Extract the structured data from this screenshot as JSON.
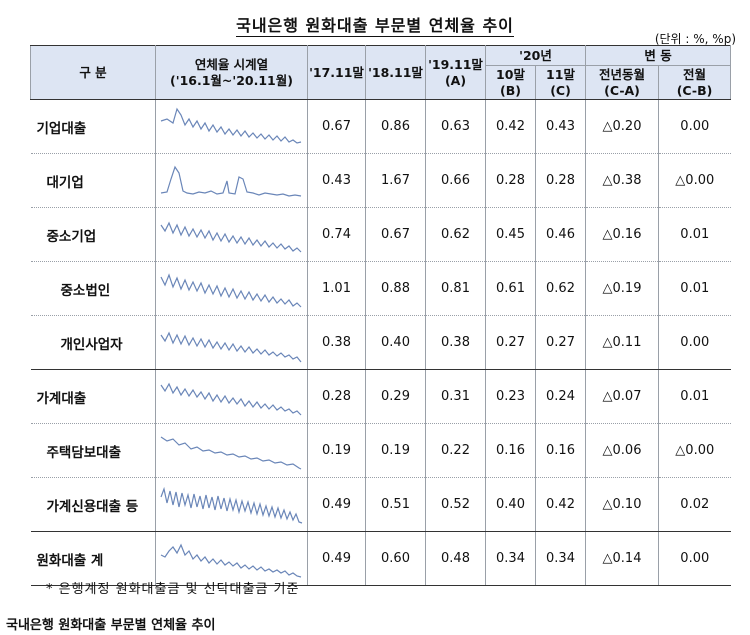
{
  "title": "국내은행 원화대출 부문별 연체율 추이",
  "unit": "(단위 : %, %p)",
  "header": {
    "category": "구 분",
    "series_line1": "연체율 시계열",
    "series_line2": "('16.1월~'20.11월)",
    "c17": "'17.11말",
    "c18": "'18.11말",
    "c19_line1": "'19.11말",
    "c19_line2": "(A)",
    "group20": "'20년",
    "c20oct": "10말(B)",
    "c20nov": "11말(C)",
    "change": "변 동",
    "yoy_line1": "전년동월",
    "yoy_line2": "(C-A)",
    "mom_line1": "전월",
    "mom_line2": "(C-B)"
  },
  "rows": [
    {
      "name": "기업대출",
      "level": 0,
      "v17": "0.67",
      "v18": "0.86",
      "v19": "0.63",
      "oct": "0.42",
      "nov": "0.43",
      "yoy": "△0.20",
      "mom": "0.00"
    },
    {
      "name": "대기업",
      "level": 1,
      "v17": "0.43",
      "v18": "1.67",
      "v19": "0.66",
      "oct": "0.28",
      "nov": "0.28",
      "yoy": "△0.38",
      "mom": "△0.00"
    },
    {
      "name": "중소기업",
      "level": 1,
      "v17": "0.74",
      "v18": "0.67",
      "v19": "0.62",
      "oct": "0.45",
      "nov": "0.46",
      "yoy": "△0.16",
      "mom": "0.01"
    },
    {
      "name": "중소법인",
      "level": 2,
      "v17": "1.01",
      "v18": "0.88",
      "v19": "0.81",
      "oct": "0.61",
      "nov": "0.62",
      "yoy": "△0.19",
      "mom": "0.01"
    },
    {
      "name": "개인사업자",
      "level": 2,
      "v17": "0.38",
      "v18": "0.40",
      "v19": "0.38",
      "oct": "0.27",
      "nov": "0.27",
      "yoy": "△0.11",
      "mom": "0.00"
    },
    {
      "name": "가계대출",
      "level": 0,
      "v17": "0.28",
      "v18": "0.29",
      "v19": "0.31",
      "oct": "0.23",
      "nov": "0.24",
      "yoy": "△0.07",
      "mom": "0.01"
    },
    {
      "name": "주택담보대출",
      "level": 1,
      "v17": "0.19",
      "v18": "0.19",
      "v19": "0.22",
      "oct": "0.16",
      "nov": "0.16",
      "yoy": "△0.06",
      "mom": "△0.00"
    },
    {
      "name": "가계신용대출 등",
      "level": 1,
      "v17": "0.49",
      "v18": "0.51",
      "v19": "0.52",
      "oct": "0.40",
      "nov": "0.42",
      "yoy": "△0.10",
      "mom": "0.02"
    },
    {
      "name": "원화대출 계",
      "level": 0,
      "v17": "0.49",
      "v18": "0.60",
      "v19": "0.48",
      "oct": "0.34",
      "nov": "0.34",
      "yoy": "△0.14",
      "mom": "0.00"
    }
  ],
  "note": "* 은행계정 원화대출금 및 신탁대출금 기준",
  "caption": "국내은행 원화대출 부문별 연체율 추이",
  "colors": {
    "header_bg": "#dde5f3",
    "sparkline": "#6a86b8"
  }
}
